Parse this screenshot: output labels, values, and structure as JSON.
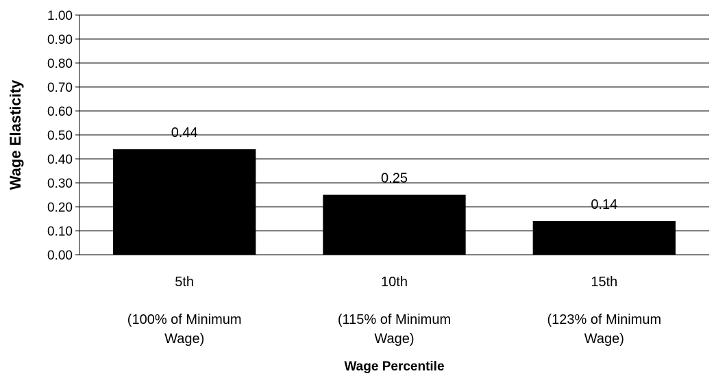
{
  "chart_data": {
    "type": "bar",
    "title": "",
    "xlabel": "Wage Percentile",
    "ylabel": "Wage Elasticity",
    "ylim": [
      0,
      1
    ],
    "yticks": [
      "0.00",
      "0.10",
      "0.20",
      "0.30",
      "0.40",
      "0.50",
      "0.60",
      "0.70",
      "0.80",
      "0.90",
      "1.00"
    ],
    "grid": true,
    "legend": "none",
    "categories": [
      {
        "label": "5th",
        "sublabel": [
          "(100% of Minimum",
          "Wage)"
        ]
      },
      {
        "label": "10th",
        "sublabel": [
          "(115% of Minimum",
          "Wage)"
        ]
      },
      {
        "label": "15th",
        "sublabel": [
          "(123% of Minimum",
          "Wage)"
        ]
      }
    ],
    "values": [
      0.44,
      0.25,
      0.14
    ],
    "data_labels": [
      "0.44",
      "0.25",
      "0.14"
    ],
    "colors": {
      "bar": "#000000",
      "grid": "#000000",
      "text": "#000000"
    }
  }
}
